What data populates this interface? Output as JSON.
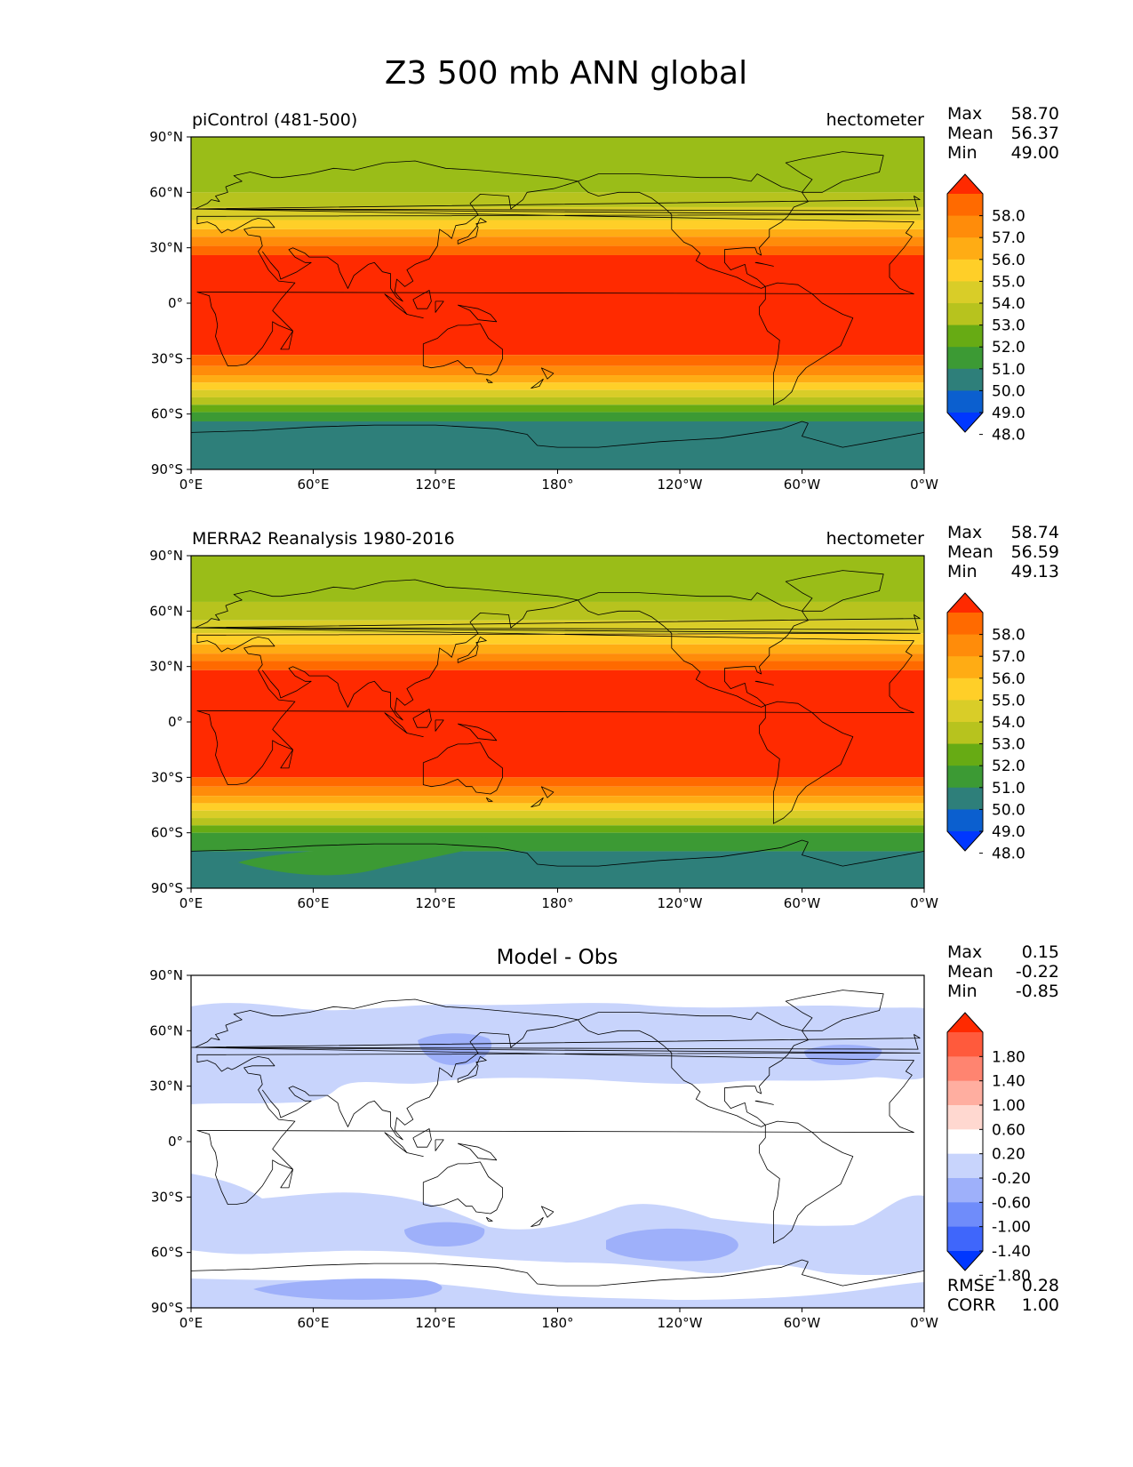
{
  "suptitle": "Z3 500 mb ANN global",
  "x_ticks": [
    "0°E",
    "60°E",
    "120°E",
    "180°",
    "120°W",
    "60°W",
    "0°W"
  ],
  "y_ticks": [
    "90°N",
    "60°N",
    "30°N",
    "0°",
    "30°S",
    "60°S",
    "90°S"
  ],
  "panels": [
    {
      "id": "test",
      "left_title": "piControl (481-500)",
      "center_title": "",
      "right_title": "hectometer",
      "stats": [
        {
          "label": "Max",
          "value": "58.70"
        },
        {
          "label": "Mean",
          "value": "56.37"
        },
        {
          "label": "Min",
          "value": "49.00"
        }
      ],
      "colorbar": {
        "labels": [
          "58.0",
          "57.0",
          "56.0",
          "55.0",
          "54.0",
          "53.0",
          "52.0",
          "51.0",
          "50.0",
          "49.0",
          "48.0"
        ],
        "colors_top_to_bottom": [
          "#ff2a00",
          "#ff6a00",
          "#ff8c0a",
          "#ffac14",
          "#ffcf28",
          "#d9cd28",
          "#b7c31e",
          "#67ab14",
          "#3c9a34",
          "#2e7f7a",
          "#0b5fcf",
          "#0037ff"
        ]
      },
      "bands": [
        {
          "lat_range": [
            60,
            90
          ],
          "color": "#9abd18"
        },
        {
          "lat_range": [
            52,
            60
          ],
          "color": "#b7c31e"
        },
        {
          "lat_range": [
            45,
            52
          ],
          "color": "#d9cd28"
        },
        {
          "lat_range": [
            40,
            45
          ],
          "color": "#ffcf28"
        },
        {
          "lat_range": [
            36,
            40
          ],
          "color": "#ffac14"
        },
        {
          "lat_range": [
            31,
            36
          ],
          "color": "#ff8c0a"
        },
        {
          "lat_range": [
            26,
            31
          ],
          "color": "#ff6a00"
        },
        {
          "lat_range": [
            -28,
            26
          ],
          "color": "#ff2a00"
        },
        {
          "lat_range": [
            -34,
            -28
          ],
          "color": "#ff6a00"
        },
        {
          "lat_range": [
            -39,
            -34
          ],
          "color": "#ff8c0a"
        },
        {
          "lat_range": [
            -43,
            -39
          ],
          "color": "#ffac14"
        },
        {
          "lat_range": [
            -47,
            -43
          ],
          "color": "#ffcf28"
        },
        {
          "lat_range": [
            -51,
            -47
          ],
          "color": "#d9cd28"
        },
        {
          "lat_range": [
            -55,
            -51
          ],
          "color": "#b7c31e"
        },
        {
          "lat_range": [
            -59,
            -55
          ],
          "color": "#67ab14"
        },
        {
          "lat_range": [
            -64,
            -59
          ],
          "color": "#3c9a34"
        },
        {
          "lat_range": [
            -90,
            -64
          ],
          "color": "#2e7f7a"
        }
      ],
      "footer_stats": []
    },
    {
      "id": "reference",
      "left_title": "MERRA2 Reanalysis 1980-2016",
      "center_title": "",
      "right_title": "hectometer",
      "stats": [
        {
          "label": "Max",
          "value": "58.74"
        },
        {
          "label": "Mean",
          "value": "56.59"
        },
        {
          "label": "Min",
          "value": "49.13"
        }
      ],
      "colorbar": {
        "labels": [
          "58.0",
          "57.0",
          "56.0",
          "55.0",
          "54.0",
          "53.0",
          "52.0",
          "51.0",
          "50.0",
          "49.0",
          "48.0"
        ],
        "colors_top_to_bottom": [
          "#ff2a00",
          "#ff6a00",
          "#ff8c0a",
          "#ffac14",
          "#ffcf28",
          "#d9cd28",
          "#b7c31e",
          "#67ab14",
          "#3c9a34",
          "#2e7f7a",
          "#0b5fcf",
          "#0037ff"
        ]
      },
      "bands": [
        {
          "lat_range": [
            65,
            90
          ],
          "color": "#9abd18"
        },
        {
          "lat_range": [
            55,
            65
          ],
          "color": "#b7c31e"
        },
        {
          "lat_range": [
            48,
            55
          ],
          "color": "#d9cd28"
        },
        {
          "lat_range": [
            42,
            48
          ],
          "color": "#ffcf28"
        },
        {
          "lat_range": [
            37,
            42
          ],
          "color": "#ffac14"
        },
        {
          "lat_range": [
            33,
            37
          ],
          "color": "#ff8c0a"
        },
        {
          "lat_range": [
            28,
            33
          ],
          "color": "#ff6a00"
        },
        {
          "lat_range": [
            -30,
            28
          ],
          "color": "#ff2a00"
        },
        {
          "lat_range": [
            -35,
            -30
          ],
          "color": "#ff6a00"
        },
        {
          "lat_range": [
            -40,
            -35
          ],
          "color": "#ff8c0a"
        },
        {
          "lat_range": [
            -44,
            -40
          ],
          "color": "#ffac14"
        },
        {
          "lat_range": [
            -48,
            -44
          ],
          "color": "#ffcf28"
        },
        {
          "lat_range": [
            -52,
            -48
          ],
          "color": "#d9cd28"
        },
        {
          "lat_range": [
            -56,
            -52
          ],
          "color": "#b7c31e"
        },
        {
          "lat_range": [
            -60,
            -56
          ],
          "color": "#67ab14"
        },
        {
          "lat_range": [
            -70,
            -60
          ],
          "color": "#3c9a34"
        },
        {
          "lat_range": [
            -90,
            -70
          ],
          "color": "#2e7f7a"
        }
      ],
      "footer_stats": []
    },
    {
      "id": "diff",
      "left_title": "",
      "center_title": "Model - Obs",
      "right_title": "",
      "stats": [
        {
          "label": "Max",
          "value": "0.15"
        },
        {
          "label": "Mean",
          "value": "-0.22"
        },
        {
          "label": "Min",
          "value": "-0.85"
        }
      ],
      "colorbar": {
        "labels": [
          "1.80",
          "1.40",
          "1.00",
          "0.60",
          "0.20",
          "-0.20",
          "-0.60",
          "-1.00",
          "-1.40",
          "-1.80"
        ],
        "colors_top_to_bottom": [
          "#ff2a00",
          "#ff5a3c",
          "#ff8470",
          "#ffaea0",
          "#ffd8d0",
          "#ffffff",
          "#c8d4fc",
          "#9eb0fa",
          "#6f8cfa",
          "#3f66fb",
          "#0037ff"
        ]
      },
      "bands": [],
      "footer_stats": [
        {
          "label": "RMSE",
          "value": "0.28"
        },
        {
          "label": "CORR",
          "value": "1.00"
        }
      ]
    }
  ],
  "colors": {
    "ocean_outline": "#000000",
    "diff_light_blue": "#c8d4fc",
    "diff_mid_blue": "#9eb0fa"
  }
}
